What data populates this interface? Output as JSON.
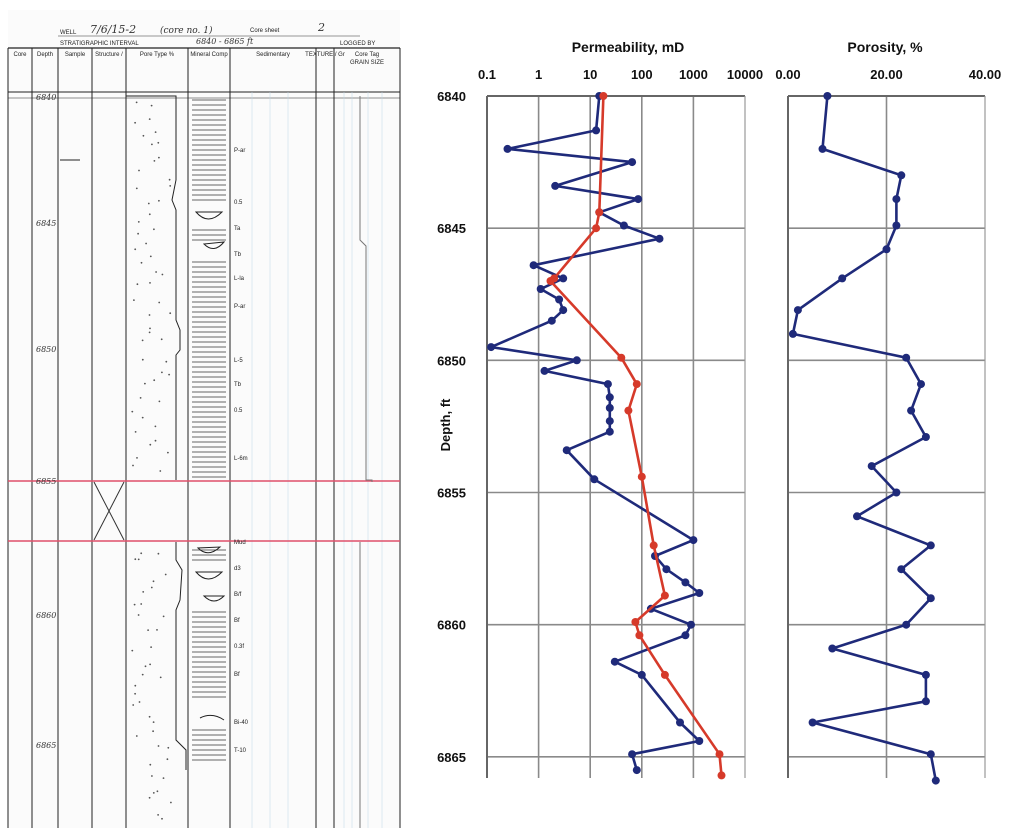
{
  "log_sheet": {
    "well_label": "WELL",
    "well_value": "7/6/15-2",
    "well_note": "(core no. 1)",
    "core_sheet_label": "Core sheet",
    "core_sheet_value": "2",
    "interval_label": "STRATIGRAPHIC INTERVAL",
    "interval_value": "6840 - 6865 ft",
    "logged_by_label": "LOGGED BY",
    "columns": [
      "Core",
      "Depth",
      "Sample",
      "Structure / Diagenetic Features",
      "Pore Type %",
      "Mineral Composition",
      "Sedimentary Structures",
      "TEXTURE / Grain Type",
      "Core Tag",
      "GRAIN SIZE"
    ],
    "depth_marks": [
      "6840",
      "6845",
      "6850",
      "6855",
      "6860",
      "6865"
    ],
    "texture_notes": [
      "P-ar",
      "0.5",
      "Ta",
      "Tb",
      "L-la",
      "P-ar",
      "L-5",
      "Tb",
      "0.5",
      "L-6m",
      "Mud",
      "d3",
      "B/f",
      "Bf",
      "0.3f",
      "Bf",
      "Bi-40",
      "T-10"
    ]
  },
  "chart_data": [
    {
      "type": "line",
      "title": "Permeability, mD",
      "ylabel": "Depth, ft",
      "x_scale": "log",
      "xlim": [
        0.1,
        10000
      ],
      "x_ticks": [
        "0.1",
        "1",
        "10",
        "100",
        "1000",
        "10000"
      ],
      "ylim": [
        6840,
        6865.8
      ],
      "y_ticks": [
        "6840",
        "6845",
        "6850",
        "6855",
        "6860",
        "6865"
      ],
      "grid": true,
      "legend": "none",
      "series": [
        {
          "color": "#1f2a7a",
          "points": [
            {
              "x": 15,
              "y": 6840
            },
            {
              "x": 13,
              "y": 6841.3
            },
            {
              "x": 0.25,
              "y": 6842
            },
            {
              "x": 65,
              "y": 6842.5
            },
            {
              "x": 2.1,
              "y": 6843.4
            },
            {
              "x": 85,
              "y": 6843.9
            },
            {
              "x": 15,
              "y": 6844.4
            },
            {
              "x": 45,
              "y": 6844.9
            },
            {
              "x": 220,
              "y": 6845.4
            },
            {
              "x": 0.8,
              "y": 6846.4
            },
            {
              "x": 3,
              "y": 6846.9
            },
            {
              "x": 1.1,
              "y": 6847.3
            },
            {
              "x": 2.5,
              "y": 6847.7
            },
            {
              "x": 3,
              "y": 6848.1
            },
            {
              "x": 1.8,
              "y": 6848.5
            },
            {
              "x": 0.12,
              "y": 6849.5
            },
            {
              "x": 5.5,
              "y": 6850
            },
            {
              "x": 1.3,
              "y": 6850.4
            },
            {
              "x": 22,
              "y": 6850.9
            },
            {
              "x": 24,
              "y": 6851.4
            },
            {
              "x": 24,
              "y": 6851.8
            },
            {
              "x": 24,
              "y": 6852.3
            },
            {
              "x": 24,
              "y": 6852.7
            },
            {
              "x": 3.5,
              "y": 6853.4
            },
            {
              "x": 12,
              "y": 6854.5
            },
            {
              "x": 1000,
              "y": 6856.8
            },
            {
              "x": 180,
              "y": 6857.4
            },
            {
              "x": 300,
              "y": 6857.9
            },
            {
              "x": 700,
              "y": 6858.4
            },
            {
              "x": 1300,
              "y": 6858.8
            },
            {
              "x": 150,
              "y": 6859.4
            },
            {
              "x": 900,
              "y": 6860
            },
            {
              "x": 700,
              "y": 6860.4
            },
            {
              "x": 30,
              "y": 6861.4
            },
            {
              "x": 100,
              "y": 6861.9
            },
            {
              "x": 550,
              "y": 6863.7
            },
            {
              "x": 1300,
              "y": 6864.4
            },
            {
              "x": 65,
              "y": 6864.9
            },
            {
              "x": 80,
              "y": 6865.5
            }
          ]
        },
        {
          "color": "#d63a2a",
          "points": [
            {
              "x": 18,
              "y": 6840
            },
            {
              "x": 15,
              "y": 6844.4
            },
            {
              "x": 13,
              "y": 6845
            },
            {
              "x": 2,
              "y": 6846.9
            },
            {
              "x": 1.7,
              "y": 6847
            },
            {
              "x": 40,
              "y": 6849.9
            },
            {
              "x": 80,
              "y": 6850.9
            },
            {
              "x": 55,
              "y": 6851.9
            },
            {
              "x": 100,
              "y": 6854.4
            },
            {
              "x": 170,
              "y": 6857
            },
            {
              "x": 280,
              "y": 6858.9
            },
            {
              "x": 75,
              "y": 6859.9
            },
            {
              "x": 90,
              "y": 6860.4
            },
            {
              "x": 280,
              "y": 6861.9
            },
            {
              "x": 3200,
              "y": 6864.9
            },
            {
              "x": 3500,
              "y": 6865.7
            }
          ]
        }
      ]
    },
    {
      "type": "line",
      "title": "Porosity, %",
      "xlim": [
        0,
        40
      ],
      "x_ticks": [
        "0.00",
        "20.00",
        "40.00"
      ],
      "ylim": [
        6840,
        6865.8
      ],
      "grid": true,
      "legend": "none",
      "series": [
        {
          "color": "#1f2a7a",
          "points": [
            {
              "x": 8,
              "y": 6840
            },
            {
              "x": 7,
              "y": 6842
            },
            {
              "x": 23,
              "y": 6843
            },
            {
              "x": 22,
              "y": 6843.9
            },
            {
              "x": 22,
              "y": 6844.9
            },
            {
              "x": 20,
              "y": 6845.8
            },
            {
              "x": 11,
              "y": 6846.9
            },
            {
              "x": 2,
              "y": 6848.1
            },
            {
              "x": 1,
              "y": 6849
            },
            {
              "x": 24,
              "y": 6849.9
            },
            {
              "x": 27,
              "y": 6850.9
            },
            {
              "x": 25,
              "y": 6851.9
            },
            {
              "x": 28,
              "y": 6852.9
            },
            {
              "x": 17,
              "y": 6854
            },
            {
              "x": 22,
              "y": 6855
            },
            {
              "x": 14,
              "y": 6855.9
            },
            {
              "x": 29,
              "y": 6857
            },
            {
              "x": 23,
              "y": 6857.9
            },
            {
              "x": 29,
              "y": 6859
            },
            {
              "x": 24,
              "y": 6860
            },
            {
              "x": 9,
              "y": 6860.9
            },
            {
              "x": 28,
              "y": 6861.9
            },
            {
              "x": 28,
              "y": 6862.9
            },
            {
              "x": 5,
              "y": 6863.7
            },
            {
              "x": 29,
              "y": 6864.9
            },
            {
              "x": 30,
              "y": 6865.9
            }
          ]
        }
      ]
    }
  ]
}
